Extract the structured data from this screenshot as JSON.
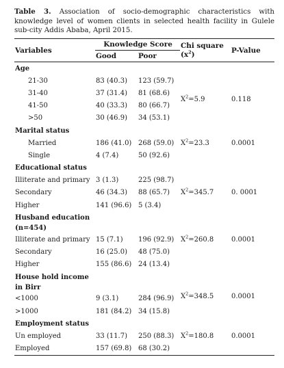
{
  "caption": {
    "label": "Table 3.",
    "text": " Association of socio-demographic characteristics with knowledge level of women clients in selected health facility in Gulele sub-city Addis Ababa, April 2015."
  },
  "header": {
    "variables": "Variables",
    "knowledge_score": "Knowledge  Score",
    "good": "Good",
    "poor": "Poor",
    "chi_square": "Chi square",
    "chi_unit_base": "(x",
    "chi_unit_sup": "2",
    "chi_unit_end": ")",
    "p_value": "P-Value"
  },
  "sections": {
    "age": {
      "title": "Age",
      "rows": [
        {
          "label": "21-30",
          "good": "83 (40.3)",
          "poor": "123 (59.7)"
        },
        {
          "label": "31-40",
          "good": "37 (31.4)",
          "poor": "81 (68.6)"
        },
        {
          "label": "41-50",
          "good": "40 (33.3)",
          "poor": "80 (66.7)"
        },
        {
          "label": ">50",
          "good": "30 (46.9)",
          "poor": "34 (53.1)"
        }
      ],
      "chi": "X",
      "chi_sup": "2",
      "chi_val": "=5.9",
      "p": "0.118"
    },
    "marital": {
      "title": "Marital status",
      "rows": [
        {
          "label": "Married",
          "good": "186 (41.0)",
          "poor": "268 (59.0)"
        },
        {
          "label": "Single",
          "good": "4 (7.4)",
          "poor": "50 (92.6)"
        }
      ],
      "chi": "X",
      "chi_sup": "2",
      "chi_val": "=23.3",
      "p": "0.0001"
    },
    "education": {
      "title": "Educational status",
      "rows": [
        {
          "label": "Illiterate and primary",
          "good": "3 (1.3)",
          "poor": "225 (98.7)"
        },
        {
          "label": "Secondary",
          "good": "46 (34.3)",
          "poor": "88 (65.7)"
        },
        {
          "label": "Higher",
          "good": "141 (96.6)",
          "poor": "5 (3.4)"
        }
      ],
      "chi": "X",
      "chi_sup": "2",
      "chi_val": "=345.7",
      "p": "0. 0001"
    },
    "husband": {
      "title_line1": "Husband education",
      "title_line2": "(n=454)",
      "rows": [
        {
          "label": "Illiterate and primary",
          "good": "15 (7.1)",
          "poor": "196 (92.9)"
        },
        {
          "label": "Secondary",
          "good": "16 (25.0)",
          "poor": "48 (75.0)"
        },
        {
          "label": "Higher",
          "good": "155 (86.6)",
          "poor": "24 (13.4)"
        }
      ],
      "chi": "X",
      "chi_sup": "2",
      "chi_val": "=260.8",
      "p": "0.0001"
    },
    "income": {
      "title_line1": "House hold income",
      "title_line2": "in Birr",
      "rows": [
        {
          "label": "<1000",
          "good": "9 (3.1)",
          "poor": "284 (96.9)"
        },
        {
          "label": ">1000",
          "good": "181 (84.2)",
          "poor": "34 (15.8)"
        }
      ],
      "chi": "X",
      "chi_sup": "2",
      "chi_val": "=348.5",
      "p": "0.0001"
    },
    "employment": {
      "title": "Employment status",
      "rows": [
        {
          "label": "Un employed",
          "good": "33 (11.7)",
          "poor": "250 (88.3)"
        },
        {
          "label": "Employed",
          "good": "157 (69.8)",
          "poor": "68  (30.2)"
        }
      ],
      "chi": "X",
      "chi_sup": "2",
      "chi_val": "=180.8",
      "p": "0.0001"
    }
  }
}
